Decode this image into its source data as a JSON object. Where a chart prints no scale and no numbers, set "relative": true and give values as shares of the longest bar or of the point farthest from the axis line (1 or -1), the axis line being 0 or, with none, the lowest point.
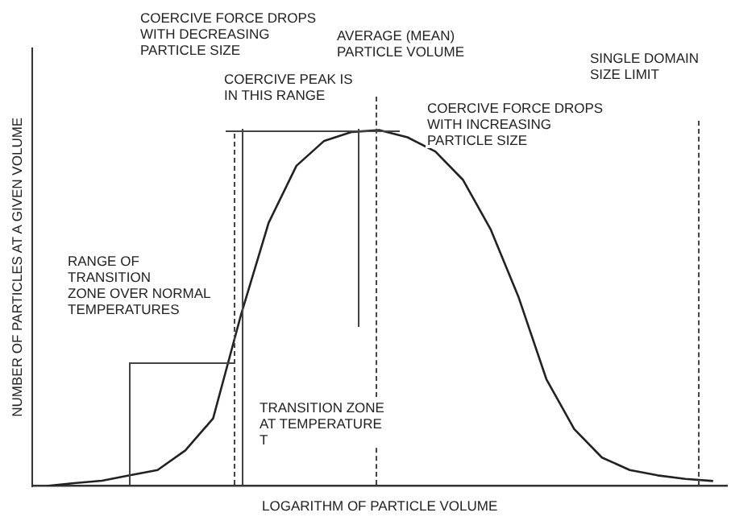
{
  "chart_data": {
    "type": "line",
    "xlabel": "LOGARITHM OF PARTICLE VOLUME",
    "ylabel": "NUMBER OF PARTICLES AT A GIVEN VOLUME",
    "relative": true,
    "grid": false,
    "legend": false,
    "marker": "none",
    "line_style": "solid",
    "categories": [
      null,
      null,
      null,
      null,
      null,
      null,
      null,
      null,
      null,
      null,
      null,
      null,
      null,
      null,
      null,
      null,
      null,
      null,
      null,
      null,
      null,
      null,
      null,
      null,
      null
    ],
    "series": [
      {
        "color": "#222222",
        "values": [
          0,
          0.008,
          0.015,
          0.03,
          0.045,
          0.1,
          0.19,
          0.48,
          0.74,
          0.9,
          0.97,
          0.995,
          1,
          0.98,
          0.94,
          0.86,
          0.72,
          0.53,
          0.3,
          0.16,
          0.08,
          0.045,
          0.03,
          0.02,
          0.014
        ]
      }
    ],
    "annotations": [
      "COERCIVE FORCE DROPS\nWITH DECREASING\nPARTICLE SIZE",
      "AVERAGE (MEAN)\nPARTICLE VOLUME",
      "COERCIVE PEAK IS\nIN THIS RANGE",
      "COERCIVE FORCE DROPS\nWITH INCREASING\nPARTICLE SIZE",
      "SINGLE DOMAIN\nSIZE LIMIT",
      "RANGE OF\nTRANSITION\nZONE OVER NORMAL\nTEMPERATURES",
      "TRANSITION ZONE\nAT TEMPERATURE\nT"
    ]
  }
}
